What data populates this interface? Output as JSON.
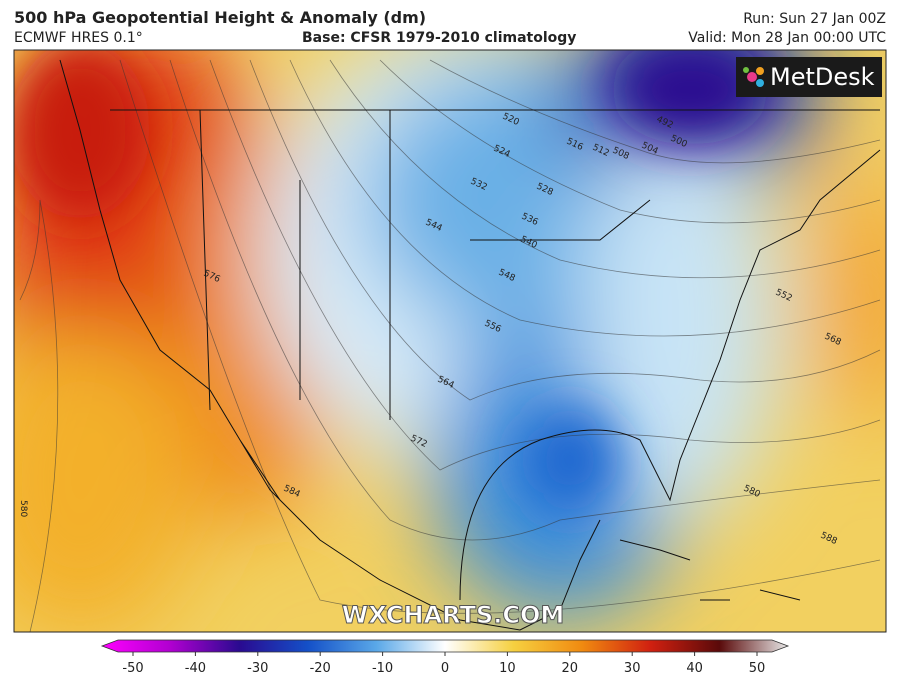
{
  "header": {
    "title": "500 hPa Geopotential Height & Anomaly (dm)",
    "model": "ECMWF HRES 0.1°",
    "base": "Base: CFSR 1979-2010 climatology",
    "run": "Run: Sun 27 Jan 00Z",
    "valid": "Valid: Mon 28 Jan 00:00 UTC"
  },
  "logo": "MetDesk",
  "watermark": "WXCHARTS.COM",
  "contour_labels": [
    "520",
    "524",
    "516",
    "512",
    "508",
    "504",
    "492",
    "500",
    "532",
    "528",
    "544",
    "536",
    "540",
    "548",
    "556",
    "564",
    "576",
    "572",
    "584",
    "580",
    "588",
    "568",
    "552",
    "580"
  ],
  "colorbar": {
    "ticks": [
      -50,
      -40,
      -30,
      -20,
      -10,
      0,
      10,
      20,
      30,
      40,
      50
    ]
  }
}
